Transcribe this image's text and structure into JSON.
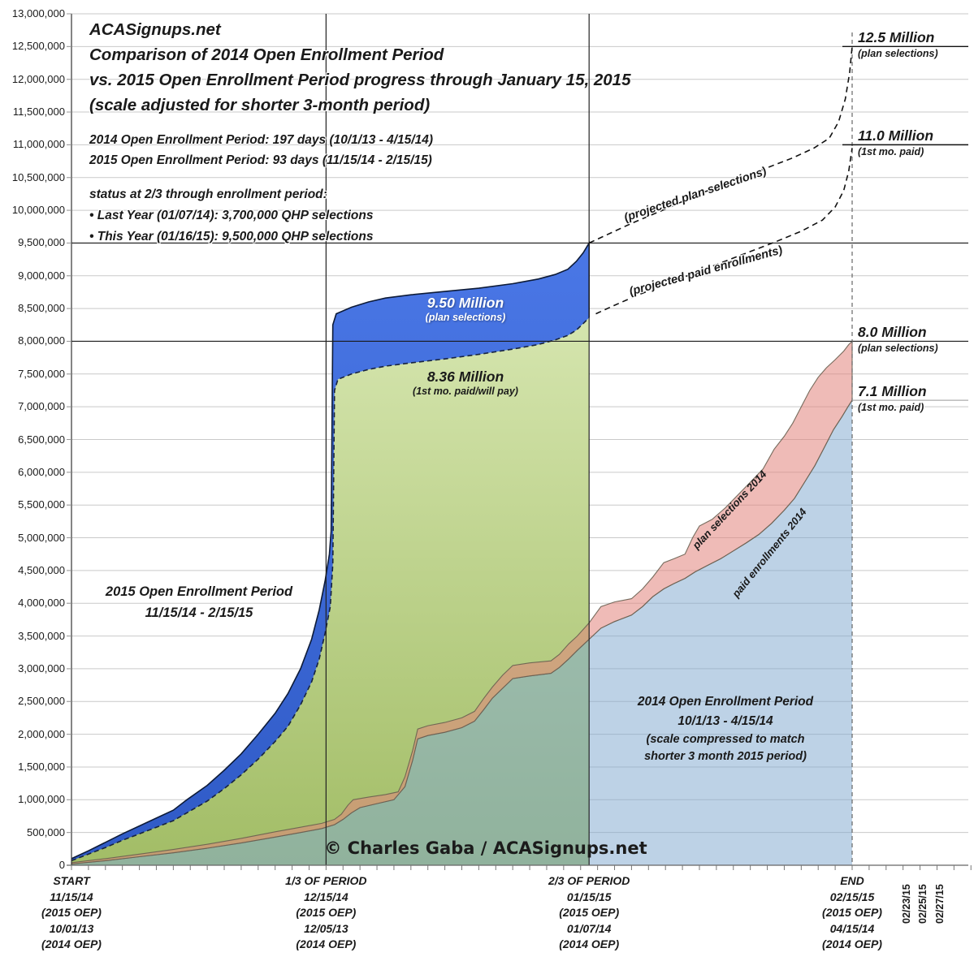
{
  "title_block": {
    "lines": [
      "ACASignups.net",
      "Comparison of 2014 Open Enrollment Period",
      "vs. 2015 Open Enrollment Period progress through January 15, 2015",
      "(scale adjusted for shorter 3-month period)"
    ]
  },
  "period_info": {
    "lines": [
      "2014 Open Enrollment Period: 197 days (10/1/13 - 4/15/14)",
      "2015 Open Enrollment Period: 93 days (11/15/14 - 2/15/15)"
    ]
  },
  "status_block": {
    "lines": [
      "status at 2/3 through enrollment period:",
      "• Last Year (01/07/14): 3,700,000 QHP selections",
      "• This Year (01/16/15): 9,500,000 QHP selections"
    ]
  },
  "area_labels": {
    "plan_2015_value": "9.50 Million",
    "plan_2015_sub": "(plan selections)",
    "paid_2015_value": "8.36 Million",
    "paid_2015_sub": "(1st mo. paid/will pay)",
    "oep_2015_line1": "2015 Open Enrollment Period",
    "oep_2015_line2": "11/15/14 - 2/15/15",
    "oep_2014_line1": "2014 Open Enrollment Period",
    "oep_2014_line2": "10/1/13 - 4/15/14",
    "oep_2014_line3": "(scale compressed to match",
    "oep_2014_line4": "shorter 3 month 2015 period)",
    "proj_plan": "(projected plan selections)",
    "proj_paid": "(projected paid enrollments)",
    "sel_2014": "plan selections 2014",
    "paid_2014": "paid enrollments 2014"
  },
  "copyright": "© Charles Gaba / ACASignups.net",
  "right_annotations": [
    {
      "value": "12.5 Million",
      "sub": "(plan selections)",
      "millions": 12.5,
      "line": "dark"
    },
    {
      "value": "11.0 Million",
      "sub": "(1st mo. paid)",
      "millions": 11.0,
      "line": "dark"
    },
    {
      "value": "8.0 Million",
      "sub": "(plan selections)",
      "millions": 8.0,
      "line": "none"
    },
    {
      "value": "7.1 Million",
      "sub": "(1st mo. paid)",
      "millions": 7.1,
      "line": "gray"
    }
  ],
  "chart_data": {
    "type": "area",
    "title": "Comparison of 2014 Open Enrollment Period vs. 2015 Open Enrollment Period progress through January 15, 2015",
    "y_axis": {
      "min": 0,
      "max": 13000000,
      "tick_step": 500000,
      "format": "comma"
    },
    "x_axis": {
      "unit": "days of enrollment period (2015 OEP scale)",
      "end_day": 92,
      "axis_max_day": 106,
      "tick_every_days": 2,
      "major_groups": [
        {
          "day": 0,
          "lines": [
            "START",
            "11/15/14",
            "(2015 OEP)",
            "10/01/13",
            "(2014 OEP)"
          ]
        },
        {
          "day": 30,
          "lines": [
            "1/3 OF PERIOD",
            "12/15/14",
            "(2015 OEP)",
            "12/05/13",
            "(2014 OEP)"
          ]
        },
        {
          "day": 61,
          "lines": [
            "2/3 OF PERIOD",
            "01/15/15",
            "(2015 OEP)",
            "01/07/14",
            "(2014 OEP)"
          ]
        },
        {
          "day": 92,
          "lines": [
            "END",
            "02/15/15",
            "(2015 OEP)",
            "04/15/14",
            "(2014 OEP)"
          ]
        }
      ],
      "extra_date_ticks": [
        {
          "day": 100,
          "label": "02/23/15"
        },
        {
          "day": 102,
          "label": "02/25/15"
        },
        {
          "day": 104,
          "label": "02/27/15"
        }
      ]
    },
    "reference_lines": {
      "vertical_solid_days": [
        30,
        61
      ],
      "vertical_dashed_day": 92,
      "horizontal_dark_millions": [
        9.5,
        8.0
      ]
    },
    "key_values": {
      "plan_selections_2015_at_2_3": 9500000,
      "paid_2015_at_2_3": 8360000,
      "projected_plan_selections_end": 12500000,
      "projected_paid_end": 11000000,
      "plan_selections_2014_end": 8000000,
      "paid_2014_end": 7100000,
      "plan_selections_2014_at_2_3": 3700000
    },
    "colors": {
      "blue_2015": "#3A67DB",
      "green_2015": "#BCD488",
      "pink_2014": "rgba(226,132,124,0.55)",
      "lightblue_2014": "rgba(128,168,208,0.52)",
      "gridline": "#c9c9c9",
      "dark_line": "#1a1a1a"
    },
    "series": [
      {
        "id": "blue2015",
        "name": "2015 plan selections",
        "style": "area",
        "unit": "millions",
        "points": [
          [
            0,
            0.1
          ],
          [
            2,
            0.22
          ],
          [
            4,
            0.35
          ],
          [
            6,
            0.48
          ],
          [
            8,
            0.6
          ],
          [
            10,
            0.72
          ],
          [
            12,
            0.84
          ],
          [
            13.6,
            1.0
          ],
          [
            16,
            1.22
          ],
          [
            18,
            1.45
          ],
          [
            20,
            1.7
          ],
          [
            22,
            2.0
          ],
          [
            24,
            2.32
          ],
          [
            25.5,
            2.62
          ],
          [
            27,
            3.0
          ],
          [
            28.3,
            3.45
          ],
          [
            29.2,
            3.9
          ],
          [
            29.9,
            4.35
          ],
          [
            30.4,
            4.75
          ],
          [
            30.6,
            5.1
          ],
          [
            30.8,
            8.25
          ],
          [
            31.2,
            8.42
          ],
          [
            33,
            8.52
          ],
          [
            35,
            8.6
          ],
          [
            37,
            8.66
          ],
          [
            40,
            8.71
          ],
          [
            44,
            8.76
          ],
          [
            48,
            8.81
          ],
          [
            52,
            8.88
          ],
          [
            55,
            8.95
          ],
          [
            57,
            9.02
          ],
          [
            58.5,
            9.1
          ],
          [
            59.5,
            9.22
          ],
          [
            60.3,
            9.35
          ],
          [
            61,
            9.5
          ]
        ]
      },
      {
        "id": "green2015",
        "name": "2015 1st month paid / will pay",
        "style": "area",
        "unit": "millions",
        "points": [
          [
            0,
            0.07
          ],
          [
            2,
            0.17
          ],
          [
            4,
            0.27
          ],
          [
            6,
            0.38
          ],
          [
            8,
            0.48
          ],
          [
            10,
            0.58
          ],
          [
            12,
            0.68
          ],
          [
            13.6,
            0.8
          ],
          [
            16,
            0.98
          ],
          [
            18,
            1.17
          ],
          [
            20,
            1.38
          ],
          [
            22,
            1.62
          ],
          [
            24,
            1.89
          ],
          [
            25.5,
            2.12
          ],
          [
            27,
            2.45
          ],
          [
            28.3,
            2.8
          ],
          [
            29.2,
            3.15
          ],
          [
            29.9,
            3.55
          ],
          [
            30.5,
            3.95
          ],
          [
            30.8,
            4.6
          ],
          [
            31,
            7.25
          ],
          [
            31.4,
            7.42
          ],
          [
            33,
            7.5
          ],
          [
            35,
            7.57
          ],
          [
            37,
            7.62
          ],
          [
            40,
            7.67
          ],
          [
            44,
            7.73
          ],
          [
            48,
            7.8
          ],
          [
            52,
            7.88
          ],
          [
            55,
            7.95
          ],
          [
            57,
            8.02
          ],
          [
            58.5,
            8.09
          ],
          [
            59.5,
            8.17
          ],
          [
            60.3,
            8.27
          ],
          [
            61,
            8.36
          ]
        ]
      },
      {
        "id": "projPlan",
        "name": "projected plan selections 2015",
        "style": "dashed-line",
        "unit": "millions",
        "points": [
          [
            61,
            9.5
          ],
          [
            63,
            9.62
          ],
          [
            66,
            9.8
          ],
          [
            70,
            10.02
          ],
          [
            74,
            10.25
          ],
          [
            78,
            10.45
          ],
          [
            82,
            10.65
          ],
          [
            85,
            10.8
          ],
          [
            87.5,
            10.95
          ],
          [
            89.3,
            11.1
          ],
          [
            90.4,
            11.35
          ],
          [
            91.2,
            11.7
          ],
          [
            91.7,
            12.1
          ],
          [
            92,
            12.5
          ]
        ]
      },
      {
        "id": "projPaid",
        "name": "projected paid enrollments 2015",
        "style": "dashed-line",
        "unit": "millions",
        "points": [
          [
            61.8,
            8.42
          ],
          [
            64,
            8.55
          ],
          [
            67,
            8.72
          ],
          [
            71,
            8.92
          ],
          [
            75,
            9.12
          ],
          [
            79,
            9.32
          ],
          [
            83,
            9.52
          ],
          [
            86,
            9.68
          ],
          [
            88.5,
            9.85
          ],
          [
            90,
            10.05
          ],
          [
            91,
            10.3
          ],
          [
            91.6,
            10.6
          ],
          [
            92,
            10.95
          ]
        ]
      },
      {
        "id": "pink2014",
        "name": "2014 plan selections",
        "style": "band-top",
        "unit": "millions",
        "points": [
          [
            0,
            0.04
          ],
          [
            4,
            0.1
          ],
          [
            8,
            0.17
          ],
          [
            12,
            0.24
          ],
          [
            16,
            0.32
          ],
          [
            20,
            0.41
          ],
          [
            24,
            0.51
          ],
          [
            27,
            0.58
          ],
          [
            29.5,
            0.64
          ],
          [
            31,
            0.7
          ],
          [
            31.8,
            0.78
          ],
          [
            32.6,
            0.92
          ],
          [
            33.2,
            1.0
          ],
          [
            35,
            1.04
          ],
          [
            37,
            1.08
          ],
          [
            38.5,
            1.12
          ],
          [
            39.3,
            1.35
          ],
          [
            40.2,
            1.75
          ],
          [
            40.8,
            2.08
          ],
          [
            42,
            2.13
          ],
          [
            44,
            2.18
          ],
          [
            46,
            2.25
          ],
          [
            47.5,
            2.35
          ],
          [
            48.6,
            2.55
          ],
          [
            49.6,
            2.72
          ],
          [
            50.8,
            2.9
          ],
          [
            52,
            3.05
          ],
          [
            54,
            3.09
          ],
          [
            56.5,
            3.12
          ],
          [
            57.5,
            3.22
          ],
          [
            58.6,
            3.38
          ],
          [
            59.6,
            3.5
          ],
          [
            61,
            3.7
          ],
          [
            62.4,
            3.95
          ],
          [
            64,
            4.02
          ],
          [
            66,
            4.07
          ],
          [
            67.3,
            4.22
          ],
          [
            68.5,
            4.4
          ],
          [
            69.8,
            4.62
          ],
          [
            71,
            4.68
          ],
          [
            72.3,
            4.75
          ],
          [
            73.2,
            5.0
          ],
          [
            74,
            5.18
          ],
          [
            75.5,
            5.28
          ],
          [
            77,
            5.45
          ],
          [
            78.5,
            5.65
          ],
          [
            80,
            5.85
          ],
          [
            81.5,
            6.05
          ],
          [
            82.8,
            6.35
          ],
          [
            84,
            6.55
          ],
          [
            85,
            6.75
          ],
          [
            86,
            7.0
          ],
          [
            87,
            7.25
          ],
          [
            88,
            7.45
          ],
          [
            89,
            7.6
          ],
          [
            90,
            7.72
          ],
          [
            91,
            7.85
          ],
          [
            91.6,
            7.95
          ],
          [
            92,
            8.0
          ]
        ]
      },
      {
        "id": "lblue2014",
        "name": "2014 paid enrollments",
        "style": "area",
        "unit": "millions",
        "points": [
          [
            0,
            0.02
          ],
          [
            4,
            0.07
          ],
          [
            8,
            0.13
          ],
          [
            12,
            0.19
          ],
          [
            16,
            0.26
          ],
          [
            20,
            0.34
          ],
          [
            24,
            0.43
          ],
          [
            27,
            0.5
          ],
          [
            29.5,
            0.56
          ],
          [
            31,
            0.62
          ],
          [
            32,
            0.7
          ],
          [
            33,
            0.8
          ],
          [
            34,
            0.88
          ],
          [
            36,
            0.94
          ],
          [
            38,
            1.0
          ],
          [
            39.3,
            1.2
          ],
          [
            40.2,
            1.6
          ],
          [
            40.8,
            1.93
          ],
          [
            42,
            1.98
          ],
          [
            44,
            2.03
          ],
          [
            46,
            2.1
          ],
          [
            47.5,
            2.2
          ],
          [
            48.6,
            2.38
          ],
          [
            49.6,
            2.55
          ],
          [
            50.8,
            2.7
          ],
          [
            52,
            2.85
          ],
          [
            54,
            2.89
          ],
          [
            56.5,
            2.93
          ],
          [
            57.5,
            3.02
          ],
          [
            58.6,
            3.15
          ],
          [
            59.6,
            3.28
          ],
          [
            61,
            3.45
          ],
          [
            62.4,
            3.62
          ],
          [
            64,
            3.72
          ],
          [
            66,
            3.82
          ],
          [
            67.3,
            3.95
          ],
          [
            68.5,
            4.1
          ],
          [
            69.8,
            4.22
          ],
          [
            71,
            4.3
          ],
          [
            72.3,
            4.38
          ],
          [
            73.5,
            4.48
          ],
          [
            75,
            4.58
          ],
          [
            76.5,
            4.68
          ],
          [
            78,
            4.8
          ],
          [
            79.5,
            4.92
          ],
          [
            81,
            5.05
          ],
          [
            82.5,
            5.22
          ],
          [
            84,
            5.42
          ],
          [
            85.2,
            5.6
          ],
          [
            86.4,
            5.85
          ],
          [
            87.6,
            6.1
          ],
          [
            88.8,
            6.4
          ],
          [
            89.8,
            6.65
          ],
          [
            90.8,
            6.85
          ],
          [
            91.5,
            7.0
          ],
          [
            92,
            7.1
          ]
        ]
      }
    ]
  }
}
